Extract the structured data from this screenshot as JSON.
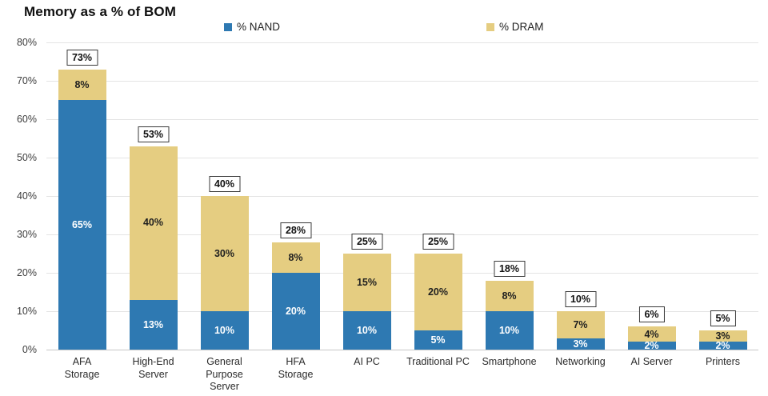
{
  "title": "Memory as a % of BOM",
  "legend": [
    {
      "label": "% NAND",
      "color": "#2E79B2"
    },
    {
      "label": "% DRAM",
      "color": "#E5CD81"
    }
  ],
  "chart_data": {
    "type": "bar",
    "stacked": true,
    "title": "Memory as a % of BOM",
    "xlabel": "",
    "ylabel": "",
    "ylim": [
      0,
      80
    ],
    "grid": true,
    "legend_position": "top",
    "y_ticks": [
      "80%",
      "70%",
      "60%",
      "50%",
      "40%",
      "30%",
      "20%",
      "10%",
      "0%"
    ],
    "categories": [
      "AFA Storage",
      "High-End Server",
      "General Purpose Server",
      "HFA Storage",
      "AI PC",
      "Traditional PC",
      "Smartphone",
      "Networking",
      "AI Server",
      "Printers"
    ],
    "category_lines": [
      [
        "AFA",
        "Storage"
      ],
      [
        "High-End",
        "Server"
      ],
      [
        "General",
        "Purpose",
        "Server"
      ],
      [
        "HFA",
        "Storage"
      ],
      [
        "AI PC"
      ],
      [
        "Traditional PC"
      ],
      [
        "Smartphone"
      ],
      [
        "Networking"
      ],
      [
        "AI Server"
      ],
      [
        "Printers"
      ]
    ],
    "series": [
      {
        "name": "% NAND",
        "color": "#2E79B2",
        "label_color": "#ffffff",
        "values": [
          65,
          13,
          10,
          20,
          10,
          5,
          10,
          3,
          2,
          2
        ]
      },
      {
        "name": "% DRAM",
        "color": "#E5CD81",
        "label_color": "#1f1f1f",
        "values": [
          8,
          40,
          30,
          8,
          15,
          20,
          8,
          7,
          4,
          3
        ]
      }
    ],
    "totals": [
      73,
      53,
      40,
      28,
      25,
      25,
      18,
      10,
      6,
      5
    ]
  }
}
